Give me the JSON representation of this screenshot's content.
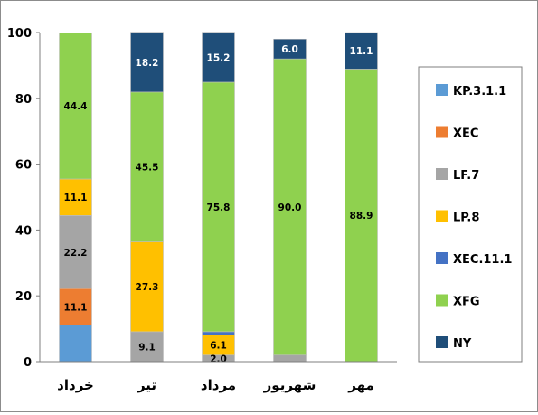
{
  "chart_data": {
    "type": "bar",
    "stacked": true,
    "title": "",
    "xlabel": "",
    "ylabel": "",
    "ylim": [
      0,
      100
    ],
    "yticks": [
      0,
      20,
      40,
      60,
      80,
      100
    ],
    "grid": false,
    "legend_position": "right",
    "categories": [
      "خرداد",
      "تیر",
      "مرداد",
      "شهریور",
      "مهر"
    ],
    "series": [
      {
        "name": "KP.3.1.1",
        "color": "#5b9bd5",
        "values": [
          11.1,
          0,
          0,
          0,
          0
        ],
        "labels": [
          "",
          "",
          "",
          "",
          ""
        ]
      },
      {
        "name": "XEC",
        "color": "#ed7d31",
        "values": [
          11.1,
          0,
          0,
          0,
          0
        ],
        "labels": [
          "11.1",
          "",
          "",
          "",
          ""
        ]
      },
      {
        "name": "LF.7",
        "color": "#a5a5a5",
        "values": [
          22.2,
          9.1,
          2.0,
          2.0,
          0
        ],
        "labels": [
          "22.2",
          "9.1",
          "2.0",
          "",
          ""
        ]
      },
      {
        "name": "LP.8",
        "color": "#ffc000",
        "values": [
          11.1,
          27.3,
          6.1,
          0,
          0
        ],
        "labels": [
          "11.1",
          "27.3",
          "6.1",
          "",
          ""
        ]
      },
      {
        "name": "XEC.11.1",
        "color": "#4472c4",
        "values": [
          0,
          0,
          1.0,
          0,
          0
        ],
        "labels": [
          "",
          "",
          "",
          "",
          ""
        ]
      },
      {
        "name": "XFG",
        "color": "#8fd14f",
        "values": [
          44.4,
          45.5,
          75.8,
          90.0,
          88.9
        ],
        "labels": [
          "44.4",
          "45.5",
          "75.8",
          "90.0",
          "88.9"
        ]
      },
      {
        "name": "NY",
        "color": "#1f4e79",
        "values": [
          0,
          18.2,
          15.2,
          6.0,
          11.1
        ],
        "labels": [
          "",
          "18.2",
          "15.2",
          "6.0",
          "11.1"
        ]
      }
    ]
  }
}
